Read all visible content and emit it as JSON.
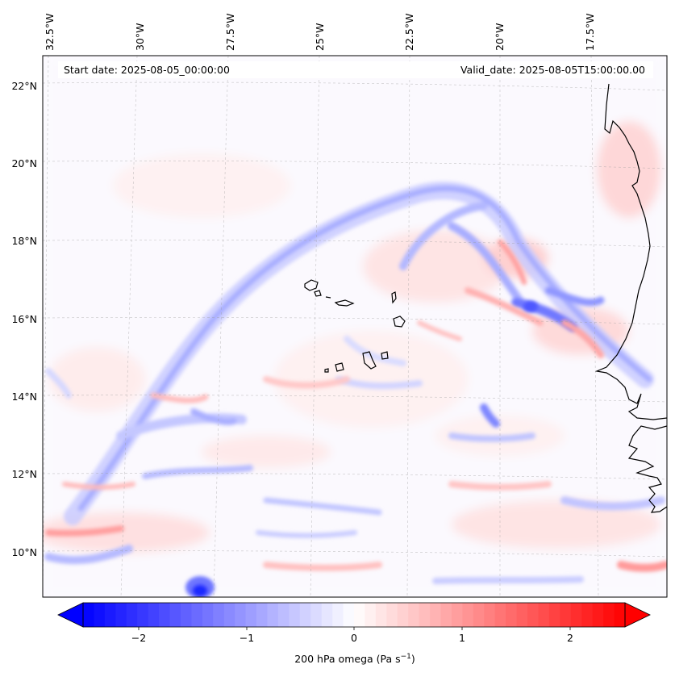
{
  "map": {
    "start_date": "Start date: 2025-08-05_00:00:00",
    "valid_date": "Valid_date: 2025-08-05T15:00:00.00",
    "lon_labels": [
      "32.5°W",
      "30°W",
      "27.5°W",
      "25°W",
      "22.5°W",
      "20°W",
      "17.5°W"
    ],
    "lat_labels": [
      "22°N",
      "20°N",
      "18°N",
      "16°N",
      "14°N",
      "12°N",
      "10°N"
    ],
    "colorbar": {
      "ticks": [
        "−2",
        "−1",
        "0",
        "1",
        "2"
      ],
      "label": "200 hPa omega (Pa s",
      "label_exp": "−1",
      "label_close": ")",
      "range": [
        -2.5,
        2.5
      ],
      "colormap": "bwr",
      "min_color": "#0000ff",
      "mid_color": "#ffffff",
      "max_color": "#ff0000"
    },
    "gridlines": true,
    "coastline_color": "#000000"
  }
}
